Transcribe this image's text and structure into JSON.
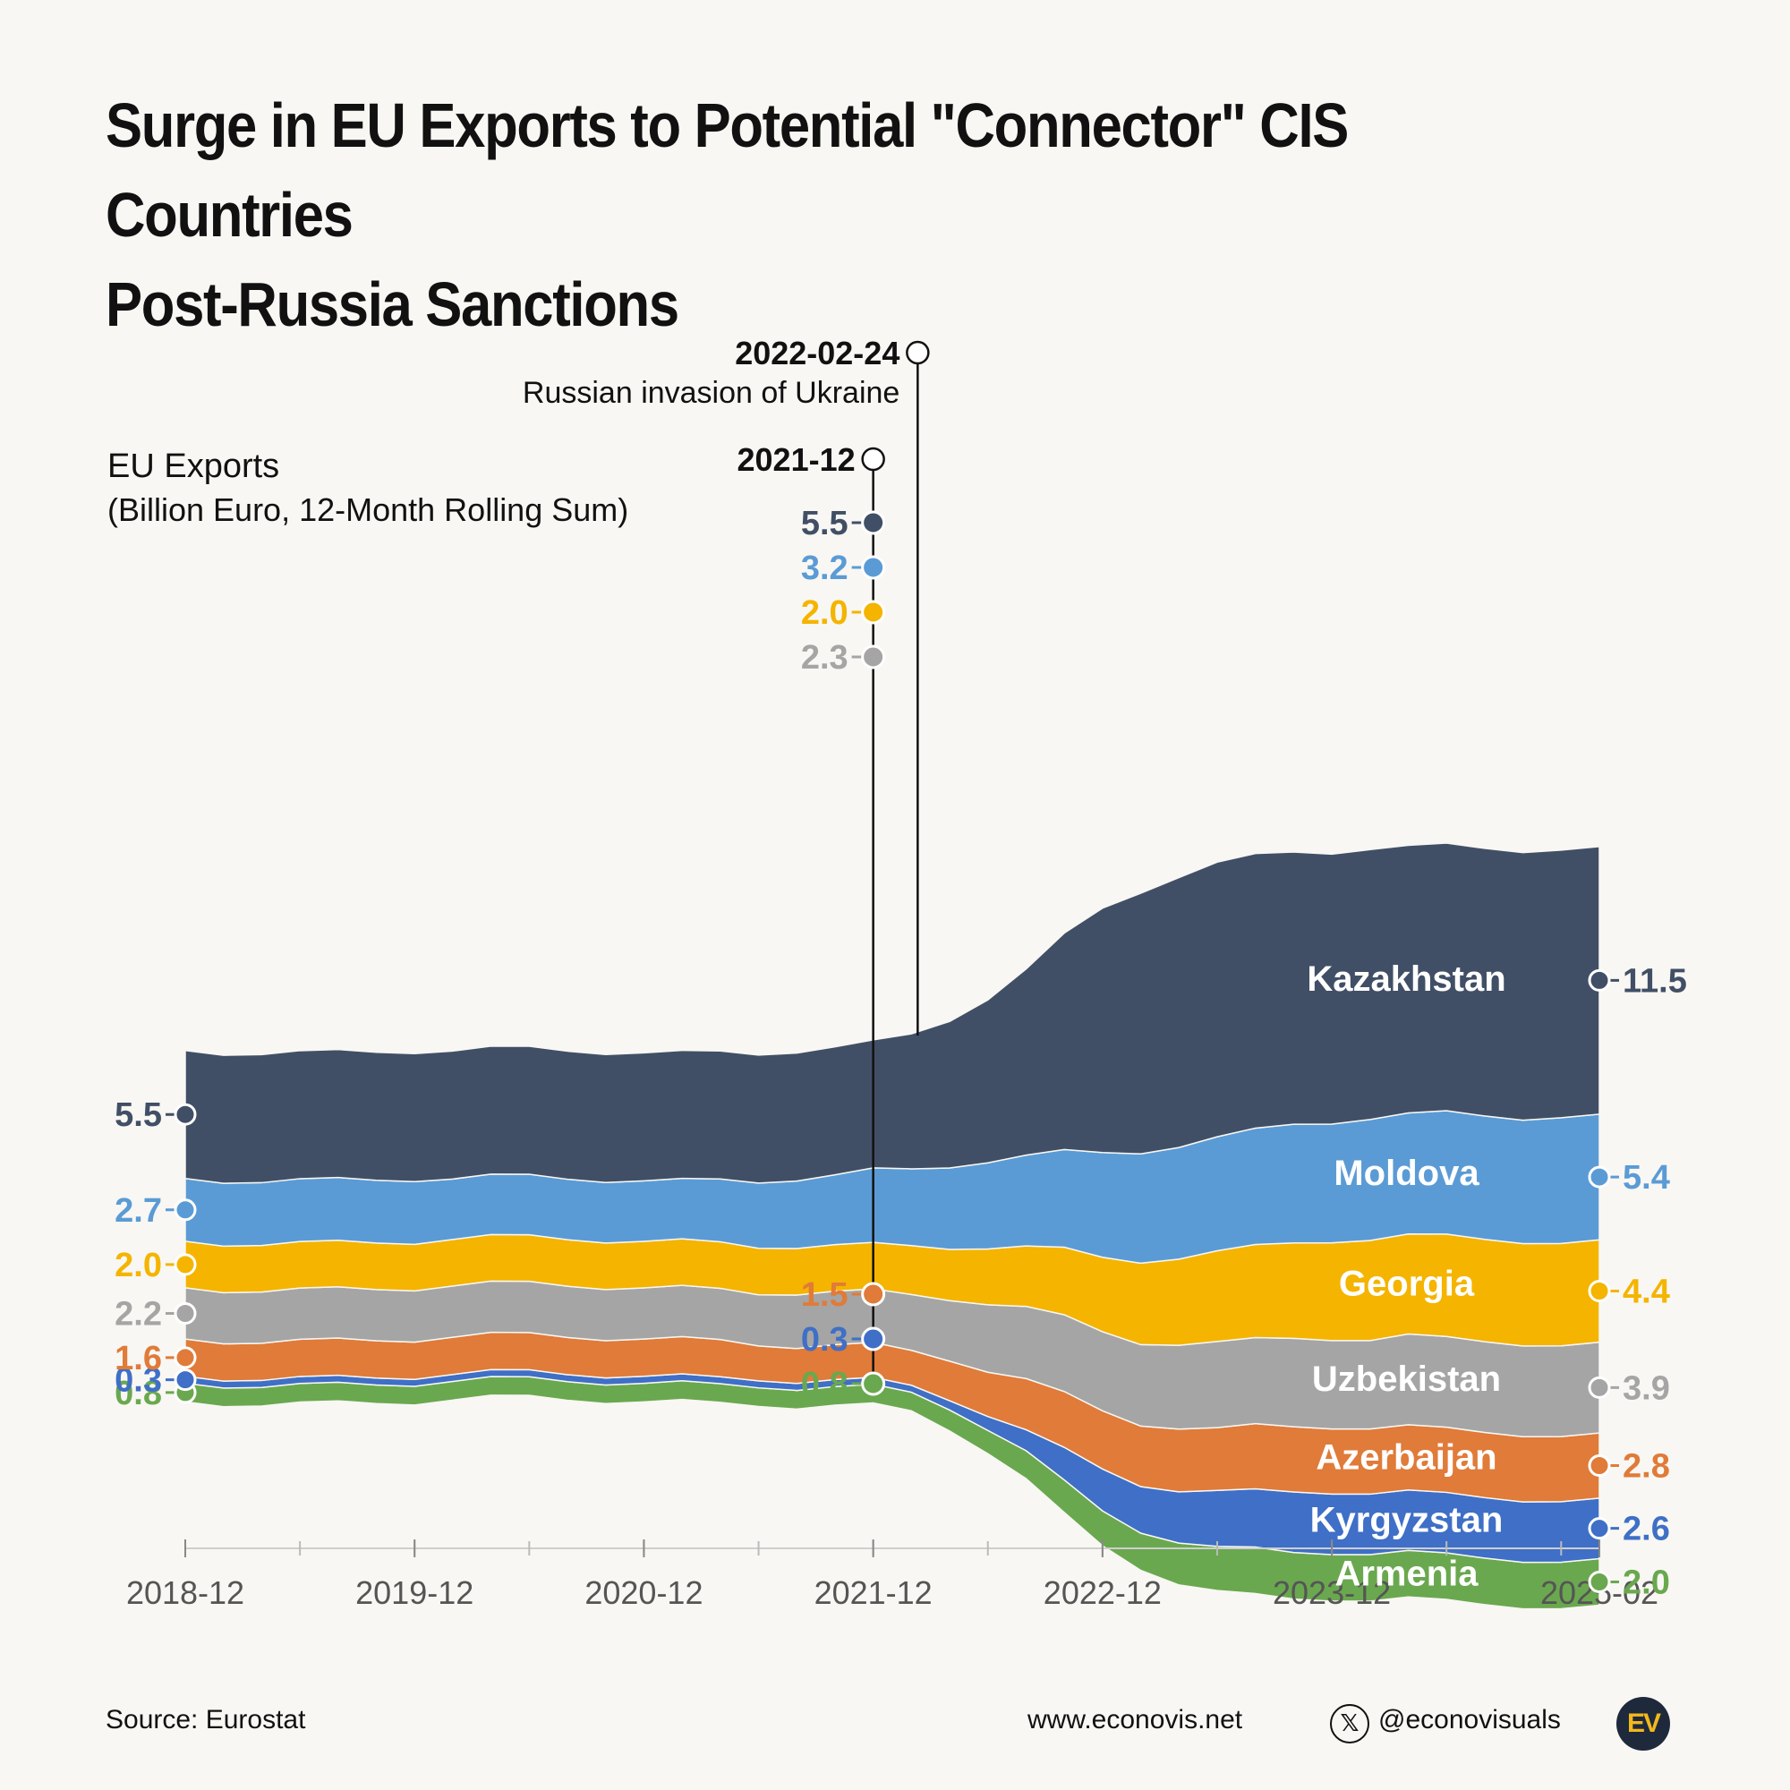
{
  "title": {
    "line1": "Surge in EU Exports to Potential \"Connector\" CIS Countries",
    "line2": "Post-Russia Sanctions"
  },
  "footer": {
    "source": "Source: Eurostat",
    "website": "www.econovis.net",
    "handle": "@econovisuals",
    "x_icon": "x-logo-icon",
    "logo_text": "EV"
  },
  "chart_data": {
    "type": "area",
    "stacked": true,
    "stacked_order": "bottom-to-top",
    "ylabel": "EU Exports",
    "ylabel_sub": "(Billion Euro, 12-Month Rolling Sum)",
    "unit": "Billion Euro, 12-Month Rolling Sum",
    "ylim": [
      0,
      33
    ],
    "x": [
      "2018-12",
      "2019-02",
      "2019-04",
      "2019-06",
      "2019-08",
      "2019-10",
      "2019-12",
      "2020-02",
      "2020-04",
      "2020-06",
      "2020-08",
      "2020-10",
      "2020-12",
      "2021-02",
      "2021-04",
      "2021-06",
      "2021-08",
      "2021-10",
      "2021-12",
      "2022-02",
      "2022-04",
      "2022-06",
      "2022-08",
      "2022-10",
      "2022-12",
      "2023-02",
      "2023-04",
      "2023-06",
      "2023-08",
      "2023-10",
      "2023-12",
      "2024-02",
      "2024-04",
      "2024-06",
      "2024-08",
      "2024-10",
      "2024-12",
      "2025-02"
    ],
    "x_ticks": [
      "2018-12",
      "2019-12",
      "2020-12",
      "2021-12",
      "2022-12",
      "2023-12",
      "2025-02"
    ],
    "series": [
      {
        "name": "Armenia",
        "color": "#6aa84f",
        "start_label": "0.8",
        "mid_label": "0.8",
        "end_label": "2.0",
        "values": [
          0.8,
          0.8,
          0.8,
          0.8,
          0.8,
          0.8,
          0.8,
          0.8,
          0.8,
          0.8,
          0.8,
          0.8,
          0.8,
          0.8,
          0.8,
          0.8,
          0.8,
          0.8,
          0.8,
          0.8,
          0.9,
          1.0,
          1.2,
          1.4,
          1.5,
          1.6,
          1.8,
          1.9,
          2.0,
          2.0,
          2.0,
          2.0,
          2.0,
          2.0,
          2.0,
          2.0,
          2.0,
          2.0
        ]
      },
      {
        "name": "Kyrgyzstan",
        "color": "#3f6fc6",
        "start_label": "0.3",
        "mid_label": "0.3",
        "end_label": "2.6",
        "values": [
          0.3,
          0.3,
          0.3,
          0.3,
          0.3,
          0.3,
          0.3,
          0.3,
          0.3,
          0.3,
          0.3,
          0.3,
          0.3,
          0.3,
          0.3,
          0.3,
          0.3,
          0.3,
          0.3,
          0.3,
          0.4,
          0.6,
          0.9,
          1.4,
          1.8,
          2.0,
          2.2,
          2.4,
          2.5,
          2.6,
          2.6,
          2.6,
          2.6,
          2.6,
          2.6,
          2.6,
          2.6,
          2.6
        ]
      },
      {
        "name": "Azerbaijan",
        "color": "#e07b39",
        "start_label": "1.6",
        "mid_label": "1.5",
        "end_label": "2.8",
        "values": [
          1.6,
          1.6,
          1.6,
          1.6,
          1.6,
          1.6,
          1.6,
          1.6,
          1.6,
          1.6,
          1.6,
          1.6,
          1.6,
          1.6,
          1.6,
          1.5,
          1.5,
          1.5,
          1.5,
          1.5,
          1.7,
          1.9,
          2.2,
          2.4,
          2.5,
          2.6,
          2.7,
          2.7,
          2.8,
          2.8,
          2.8,
          2.8,
          2.8,
          2.8,
          2.8,
          2.8,
          2.8,
          2.8
        ]
      },
      {
        "name": "Uzbekistan",
        "color": "#a5a5a5",
        "start_label": "2.2",
        "mid_label": "2.3",
        "end_label": "3.9",
        "values": [
          2.2,
          2.2,
          2.2,
          2.2,
          2.2,
          2.2,
          2.2,
          2.2,
          2.2,
          2.2,
          2.2,
          2.2,
          2.2,
          2.2,
          2.2,
          2.2,
          2.3,
          2.3,
          2.3,
          2.4,
          2.6,
          2.9,
          3.1,
          3.3,
          3.4,
          3.5,
          3.6,
          3.7,
          3.7,
          3.8,
          3.8,
          3.8,
          3.9,
          3.9,
          3.9,
          3.9,
          3.9,
          3.9
        ]
      },
      {
        "name": "Georgia",
        "color": "#f4b400",
        "start_label": "2.0",
        "mid_label": "2.0",
        "end_label": "4.4",
        "values": [
          2.0,
          2.0,
          2.0,
          2.0,
          2.0,
          2.0,
          2.0,
          2.0,
          2.0,
          2.0,
          2.0,
          2.0,
          2.0,
          2.0,
          2.0,
          2.0,
          2.0,
          2.0,
          2.0,
          2.1,
          2.2,
          2.4,
          2.6,
          2.9,
          3.2,
          3.5,
          3.7,
          3.9,
          4.0,
          4.1,
          4.2,
          4.3,
          4.3,
          4.4,
          4.4,
          4.4,
          4.4,
          4.4
        ]
      },
      {
        "name": "Moldova",
        "color": "#5b9bd5",
        "start_label": "2.7",
        "mid_label": "3.2",
        "end_label": "5.4",
        "values": [
          2.7,
          2.7,
          2.7,
          2.7,
          2.7,
          2.7,
          2.7,
          2.6,
          2.6,
          2.6,
          2.6,
          2.6,
          2.6,
          2.6,
          2.7,
          2.8,
          2.9,
          3.0,
          3.2,
          3.3,
          3.5,
          3.7,
          3.9,
          4.2,
          4.5,
          4.7,
          4.8,
          4.9,
          5.0,
          5.1,
          5.1,
          5.2,
          5.2,
          5.3,
          5.3,
          5.3,
          5.4,
          5.4
        ]
      },
      {
        "name": "Kazakhstan",
        "color": "#414f66",
        "start_label": "5.5",
        "mid_label": "5.5",
        "end_label": "11.5",
        "values": [
          5.5,
          5.5,
          5.5,
          5.5,
          5.5,
          5.5,
          5.5,
          5.5,
          5.5,
          5.5,
          5.5,
          5.5,
          5.5,
          5.5,
          5.5,
          5.5,
          5.5,
          5.5,
          5.5,
          5.8,
          6.3,
          7.0,
          8.0,
          9.3,
          10.5,
          11.2,
          11.6,
          11.8,
          11.8,
          11.7,
          11.6,
          11.6,
          11.5,
          11.5,
          11.5,
          11.5,
          11.5,
          11.5
        ]
      }
    ],
    "annotations": [
      {
        "date": "2022-02-24",
        "label": "2022-02-24",
        "text": "Russian invasion of Ukraine"
      },
      {
        "date": "2021-12",
        "label": "2021-12"
      }
    ]
  }
}
